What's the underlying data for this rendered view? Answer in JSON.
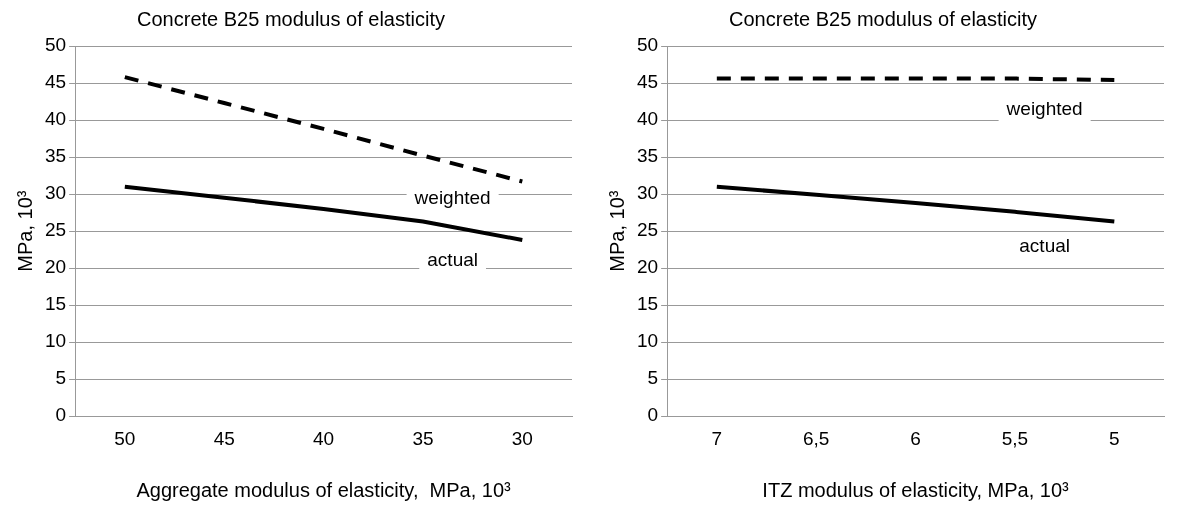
{
  "chart_data": [
    {
      "type": "line",
      "title": "Concrete B25 modulus of elasticity",
      "xlabel": "Aggregate modulus of elasticity,  MPa, 10³",
      "ylabel": "MPa, 10³",
      "categories": [
        "50",
        "45",
        "40",
        "35",
        "30"
      ],
      "series": [
        {
          "name": "weighted",
          "color": "#000000",
          "line_style": "dashed",
          "values": [
            45.8,
            42.3,
            38.8,
            35.2,
            31.7
          ]
        },
        {
          "name": "actual",
          "color": "#000000",
          "line_style": "solid",
          "values": [
            31,
            29.5,
            28,
            26.3,
            23.8
          ]
        }
      ],
      "ylim": [
        0,
        50
      ],
      "yticks": [
        0,
        5,
        10,
        15,
        20,
        25,
        30,
        35,
        40,
        45,
        50
      ],
      "grid": "y",
      "legend": false,
      "marker": "none"
    },
    {
      "type": "line",
      "title": "Concrete B25 modulus of elasticity",
      "xlabel": "ITZ modulus of elasticity, MPa, 10³",
      "ylabel": "MPa, 10³",
      "categories": [
        "7",
        "6,5",
        "6",
        "5,5",
        "5"
      ],
      "series": [
        {
          "name": "weighted",
          "color": "#000000",
          "line_style": "dashed",
          "values": [
            45.6,
            45.6,
            45.6,
            45.6,
            45.4
          ]
        },
        {
          "name": "actual",
          "color": "#000000",
          "line_style": "solid",
          "values": [
            31,
            29.9,
            28.8,
            27.6,
            26.3
          ]
        }
      ],
      "ylim": [
        0,
        50
      ],
      "yticks": [
        0,
        5,
        10,
        15,
        20,
        25,
        30,
        35,
        40,
        45,
        50
      ],
      "grid": "y",
      "legend": false,
      "marker": "none"
    }
  ]
}
